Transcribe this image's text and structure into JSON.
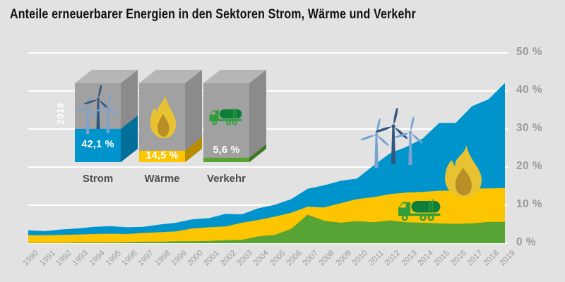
{
  "title": "Anteile erneuerbarer Energien in den Sektoren Strom, Wärme und Verkehr",
  "year_label": "2019",
  "legend": {
    "items": [
      {
        "sector": "Strom",
        "value_label": "42,1 %",
        "value": 42.1,
        "icon": "wind-turbine",
        "color": "#0094cd",
        "side_color": "#006f9a"
      },
      {
        "sector": "Wärme",
        "value_label": "14,5 %",
        "value": 14.5,
        "icon": "flame",
        "color": "#fdc400",
        "side_color": "#b78d00"
      },
      {
        "sector": "Verkehr",
        "value_label": "5,6 %",
        "value": 5.6,
        "icon": "tank-truck",
        "color": "#57a434",
        "side_color": "#3d7a22"
      }
    ]
  },
  "axes": {
    "y_ticks": [
      {
        "label": "0 %",
        "value": 0
      },
      {
        "label": "10 %",
        "value": 10
      },
      {
        "label": "20 %",
        "value": 20
      },
      {
        "label": "30 %",
        "value": 30
      },
      {
        "label": "40 %",
        "value": 40
      },
      {
        "label": "50 %",
        "value": 50
      }
    ],
    "x_ticks": [
      "1990",
      "1991",
      "1992",
      "1993",
      "1994",
      "1995",
      "1996",
      "1997",
      "1998",
      "1999",
      "2000",
      "2001",
      "2002",
      "2003",
      "2004",
      "2005",
      "2006",
      "2007",
      "2008",
      "2009",
      "2010",
      "2011",
      "2012",
      "2013",
      "2014",
      "2015",
      "2016",
      "2017",
      "2018",
      "2019"
    ]
  },
  "chart_data": {
    "type": "area",
    "title": "Anteile erneuerbarer Energien in den Sektoren Strom, Wärme und Verkehr",
    "x": [
      1990,
      1991,
      1992,
      1993,
      1994,
      1995,
      1996,
      1997,
      1998,
      1999,
      2000,
      2001,
      2002,
      2003,
      2004,
      2005,
      2006,
      2007,
      2008,
      2009,
      2010,
      2011,
      2012,
      2013,
      2014,
      2015,
      2016,
      2017,
      2018,
      2019
    ],
    "series": [
      {
        "name": "Strom",
        "color": "#0094cd",
        "values": [
          3.4,
          3.2,
          3.6,
          3.9,
          4.3,
          4.5,
          4.2,
          4.3,
          4.9,
          5.4,
          6.3,
          6.6,
          7.7,
          7.6,
          9.2,
          10.1,
          11.6,
          14.3,
          15.2,
          16.4,
          17.0,
          20.4,
          23.6,
          25.3,
          27.5,
          31.6,
          31.6,
          36.0,
          37.8,
          42.1
        ]
      },
      {
        "name": "Wärme",
        "color": "#fdc400",
        "values": [
          2.1,
          2.1,
          2.2,
          2.3,
          2.4,
          2.5,
          2.4,
          2.7,
          2.9,
          3.1,
          3.9,
          4.2,
          4.4,
          5.4,
          6.1,
          7.0,
          8.0,
          9.6,
          9.4,
          10.5,
          11.6,
          12.1,
          12.9,
          13.3,
          13.5,
          13.8,
          13.8,
          14.4,
          14.4,
          14.5
        ]
      },
      {
        "name": "Verkehr",
        "color": "#57a434",
        "values": [
          0.1,
          0.1,
          0.1,
          0.2,
          0.2,
          0.2,
          0.3,
          0.4,
          0.4,
          0.5,
          0.5,
          0.6,
          0.8,
          0.9,
          1.8,
          2.2,
          3.8,
          7.5,
          5.9,
          5.4,
          5.8,
          5.5,
          6.0,
          5.5,
          5.4,
          5.2,
          5.1,
          5.2,
          5.6,
          5.6
        ]
      }
    ],
    "ylim": [
      0,
      50
    ],
    "xlabel": "",
    "ylabel": "",
    "grid": true,
    "legend_position": "top-left"
  },
  "colors": {
    "background": "#e2e2e2",
    "grid": "#ffffff",
    "title_text": "#111111",
    "axis_text": "#9b9b9b",
    "sector_text": "#4d4d4d",
    "box_front": "#a1a1a1",
    "box_top": "#b6b6b6",
    "box_side": "#8b8b8b",
    "turbine_light": "#77a3d4",
    "turbine_dark": "#32567d",
    "flame_outer": "#e9c233",
    "flame_inner": "#b98e26",
    "truck_light": "#2f9e3b",
    "truck_dark": "#0e7e3b"
  }
}
